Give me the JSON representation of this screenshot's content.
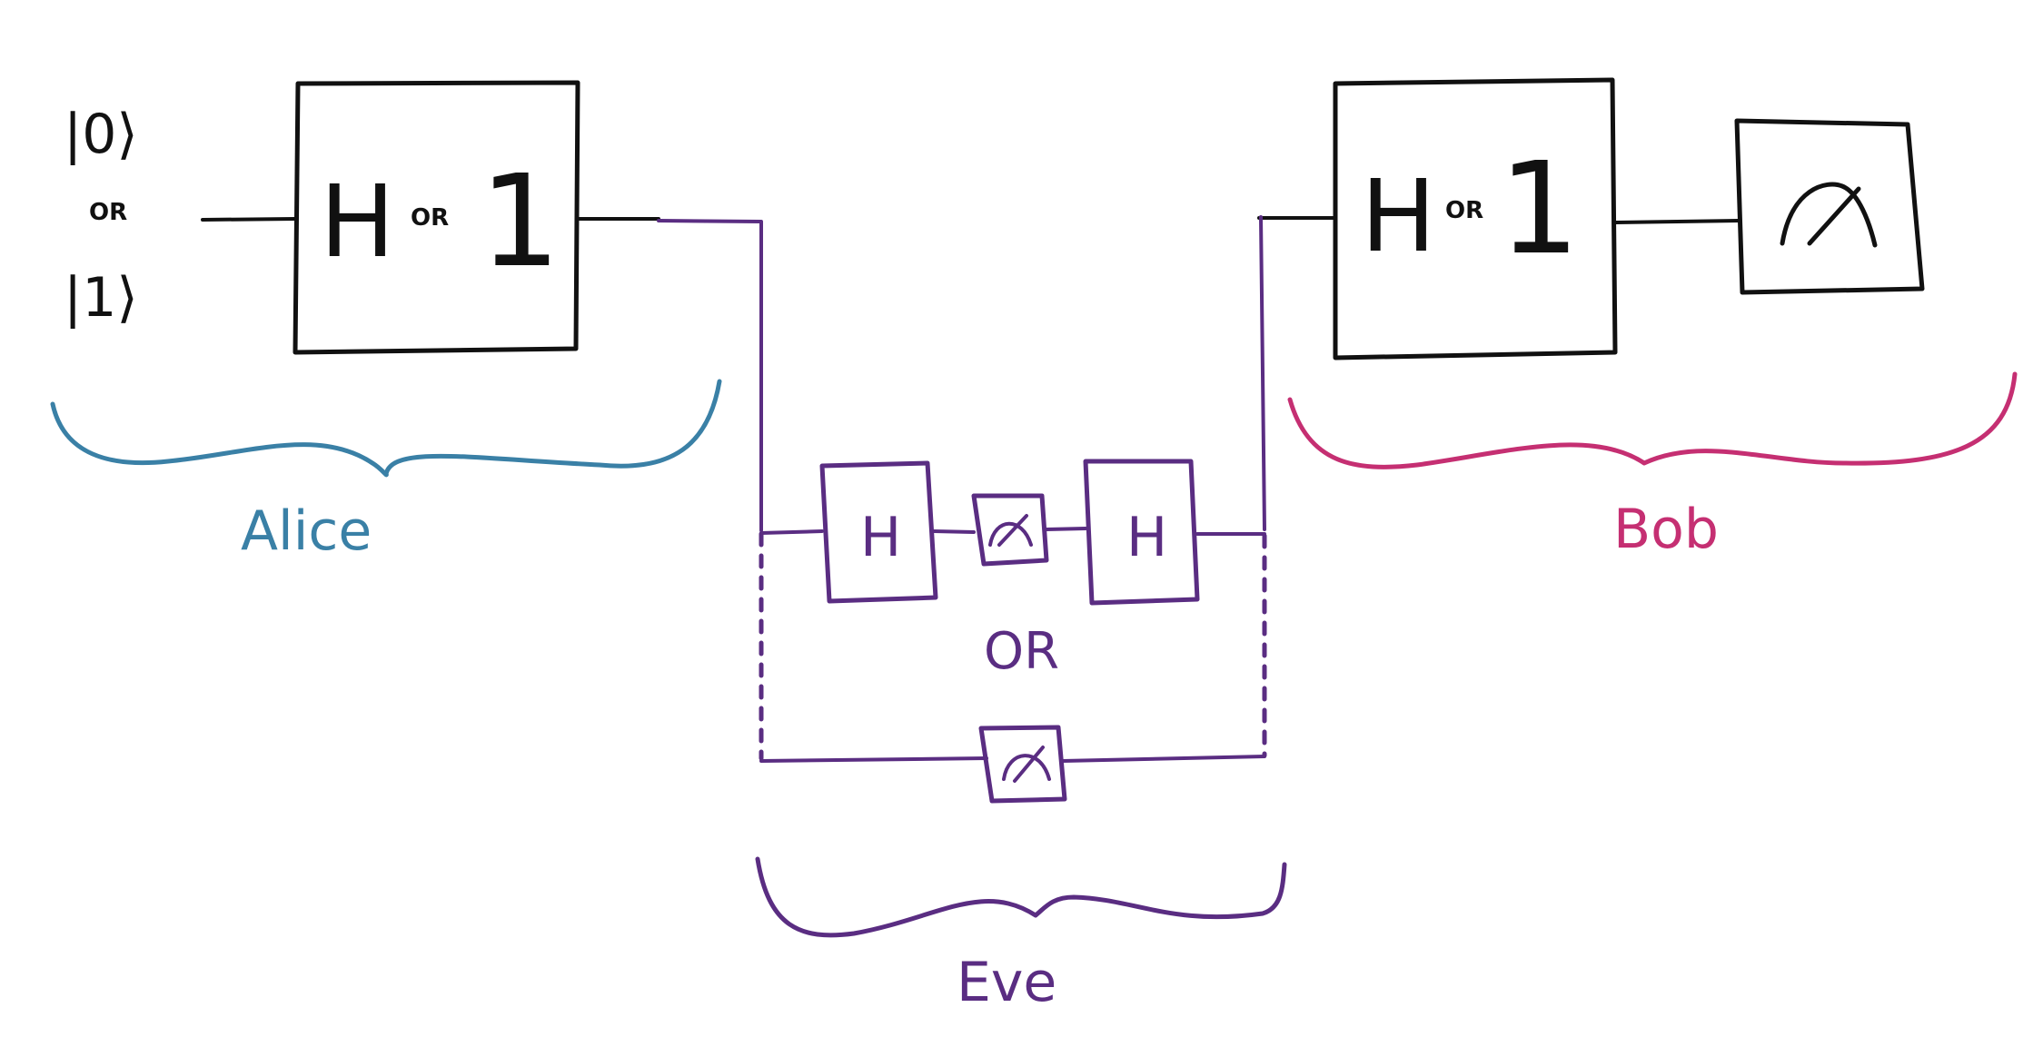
{
  "parties": {
    "alice": {
      "name": "Alice",
      "color": "#3a80a6"
    },
    "bob": {
      "name": "Bob",
      "color": "#c52f72"
    },
    "eve": {
      "name": "Eve",
      "color": "#5a2d82"
    }
  },
  "alice_input": {
    "state_zero": "|0⟩",
    "or": "OR",
    "state_one": "|1⟩"
  },
  "alice_gate": {
    "h": "H",
    "or": "OR",
    "identity": "1"
  },
  "bob_gate": {
    "h": "H",
    "or": "OR",
    "identity": "1"
  },
  "eve_options": {
    "option_a_gate1": "H",
    "option_a_gate2": "H",
    "or": "OR"
  },
  "colors": {
    "ink": "#111111"
  },
  "icons": {
    "measure": "measurement-meter-icon"
  }
}
